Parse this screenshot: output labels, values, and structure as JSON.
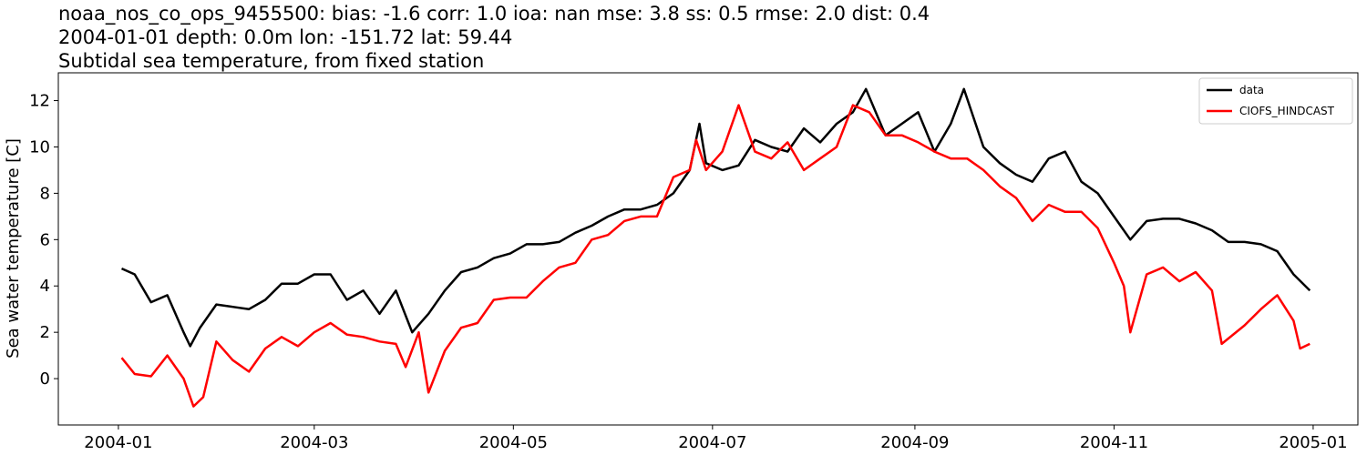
{
  "chart_data": {
    "type": "line",
    "title": [
      "noaa_nos_co_ops_9455500: bias: -1.6  corr: 1.0  ioa: nan  mse: 3.8  ss: 0.5  rmse: 2.0  dist: 0.4",
      "2004-01-01 depth: 0.0m lon: -151.72 lat: 59.44",
      "Subtidal sea temperature, from fixed station"
    ],
    "y_label": "Sea water temperature [C]",
    "xlim": [
      -18.4,
      379.7
    ],
    "xticks": [
      {
        "value": 0,
        "label": "2004-01"
      },
      {
        "value": 60,
        "label": "2004-03"
      },
      {
        "value": 121,
        "label": "2004-05"
      },
      {
        "value": 182,
        "label": "2004-07"
      },
      {
        "value": 244,
        "label": "2004-09"
      },
      {
        "value": 305,
        "label": "2004-11"
      },
      {
        "value": 366,
        "label": "2005-01"
      }
    ],
    "ylim": [
      -2.0,
      13.2
    ],
    "yticks": [
      0,
      2,
      4,
      6,
      8,
      10,
      12
    ],
    "legend": "upper right",
    "series": [
      {
        "name": "data",
        "color": "#000000",
        "x": [
          1,
          5,
          10,
          15,
          20,
          22,
          25,
          30,
          35,
          40,
          45,
          50,
          55,
          60,
          65,
          70,
          75,
          80,
          85,
          90,
          95,
          100,
          105,
          110,
          115,
          120,
          125,
          130,
          135,
          140,
          145,
          150,
          155,
          160,
          165,
          170,
          175,
          178,
          180,
          185,
          190,
          195,
          200,
          205,
          210,
          215,
          220,
          225,
          229,
          235,
          240,
          245,
          250,
          255,
          259,
          265,
          270,
          275,
          280,
          285,
          290,
          295,
          300,
          305,
          310,
          315,
          320,
          325,
          330,
          335,
          340,
          345,
          350,
          355,
          360,
          365
        ],
        "values": [
          4.75,
          4.5,
          3.3,
          3.6,
          2.0,
          1.4,
          2.2,
          3.2,
          3.1,
          3.0,
          3.4,
          4.1,
          4.1,
          4.5,
          4.5,
          3.4,
          3.8,
          2.8,
          3.8,
          2.0,
          2.8,
          3.8,
          4.6,
          4.8,
          5.2,
          5.4,
          5.8,
          5.8,
          5.9,
          6.3,
          6.6,
          7.0,
          7.3,
          7.3,
          7.5,
          8.0,
          9.0,
          11.0,
          9.3,
          9.0,
          9.2,
          10.3,
          10.0,
          9.8,
          10.8,
          10.2,
          11.0,
          11.5,
          12.5,
          10.5,
          11.0,
          11.5,
          9.8,
          11.0,
          12.5,
          10.0,
          9.3,
          8.8,
          8.5,
          9.5,
          9.8,
          8.5,
          8.0,
          7.0,
          6.0,
          6.8,
          6.9,
          6.9,
          6.7,
          6.4,
          5.9,
          5.9,
          5.8,
          5.5,
          4.5,
          3.8
        ]
      },
      {
        "name": "CIOFS_HINDCAST",
        "color": "#ff0000",
        "x": [
          1,
          5,
          10,
          15,
          20,
          23,
          26,
          30,
          35,
          40,
          45,
          50,
          55,
          60,
          65,
          70,
          75,
          80,
          85,
          88,
          92,
          95,
          100,
          105,
          110,
          115,
          120,
          125,
          130,
          135,
          140,
          145,
          150,
          155,
          160,
          165,
          170,
          175,
          177,
          180,
          185,
          190,
          195,
          200,
          205,
          210,
          215,
          220,
          225,
          230,
          235,
          240,
          245,
          250,
          255,
          260,
          265,
          270,
          275,
          280,
          285,
          290,
          295,
          300,
          305,
          308,
          310,
          315,
          320,
          325,
          330,
          335,
          338,
          345,
          350,
          355,
          360,
          362,
          365
        ],
        "values": [
          0.9,
          0.2,
          0.1,
          1.0,
          0.0,
          -1.2,
          -0.8,
          1.6,
          0.8,
          0.3,
          1.3,
          1.8,
          1.4,
          2.0,
          2.4,
          1.9,
          1.8,
          1.6,
          1.5,
          0.5,
          2.0,
          -0.6,
          1.2,
          2.2,
          2.4,
          3.4,
          3.5,
          3.5,
          4.2,
          4.8,
          5.0,
          6.0,
          6.2,
          6.8,
          7.0,
          7.0,
          8.7,
          9.0,
          10.3,
          9.0,
          9.8,
          11.8,
          9.8,
          9.5,
          10.2,
          9.0,
          9.5,
          10.0,
          11.8,
          11.5,
          10.5,
          10.5,
          10.2,
          9.8,
          9.5,
          9.5,
          9.0,
          8.3,
          7.8,
          6.8,
          7.5,
          7.2,
          7.2,
          6.5,
          5.0,
          4.0,
          2.0,
          4.5,
          4.8,
          4.2,
          4.6,
          3.8,
          1.5,
          2.3,
          3.0,
          3.6,
          2.5,
          1.3,
          1.5
        ]
      }
    ]
  }
}
